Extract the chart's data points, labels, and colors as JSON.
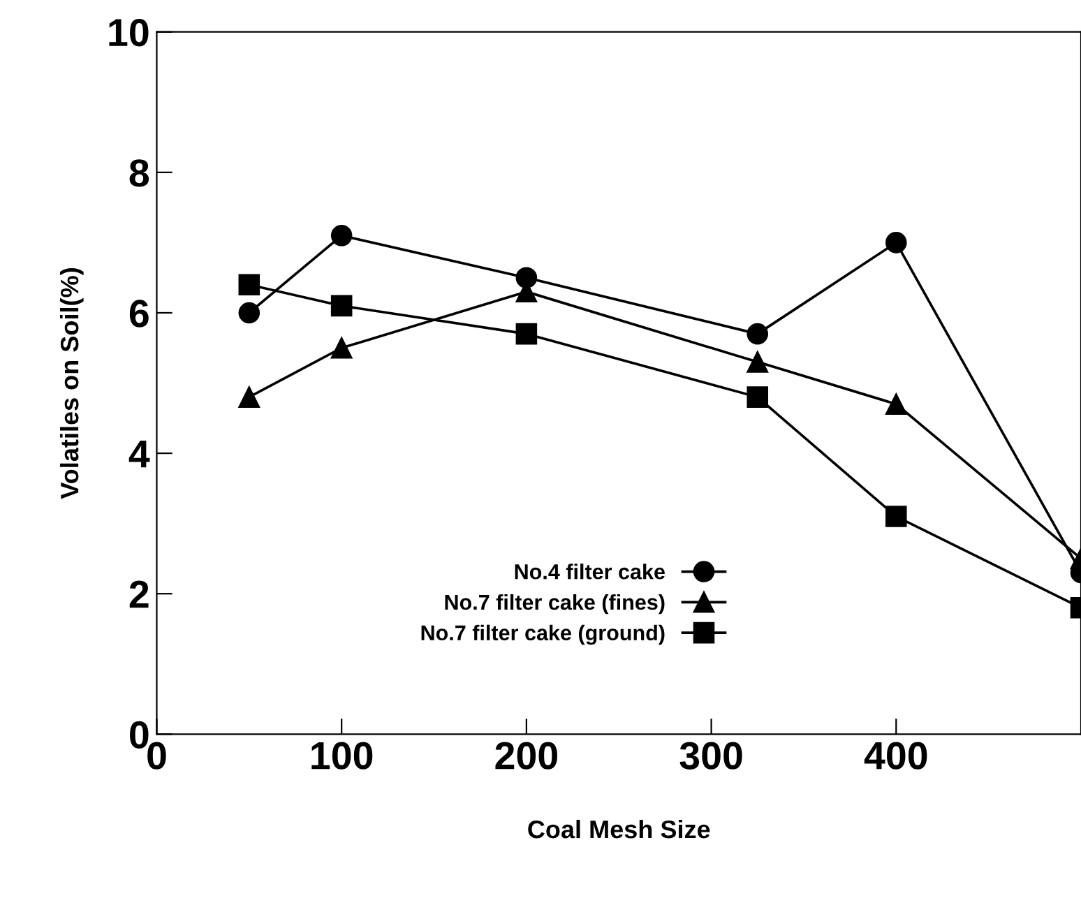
{
  "chart_data": {
    "type": "line",
    "xlabel": "Coal Mesh Size",
    "ylabel": "Volatiles on Soil(%)",
    "x": [
      50,
      100,
      200,
      325,
      400,
      500
    ],
    "series": [
      {
        "name": "No.4 filter cake",
        "color": "#000000",
        "marker": "circle",
        "values": [
          6.0,
          7.1,
          6.5,
          5.7,
          7.0,
          2.3
        ]
      },
      {
        "name": "No.7 filter cake (fines)",
        "color": "#000000",
        "marker": "triangle",
        "values": [
          4.8,
          5.5,
          6.3,
          5.3,
          4.7,
          2.5
        ]
      },
      {
        "name": "No.7 filter cake (ground)",
        "color": "#000000",
        "marker": "square",
        "values": [
          6.4,
          6.1,
          5.7,
          4.8,
          3.1,
          1.8
        ]
      }
    ],
    "xlim": [
      0,
      500
    ],
    "ylim": [
      0,
      10
    ],
    "xticks": [
      0,
      100,
      200,
      300,
      400
    ],
    "yticks": [
      0,
      2,
      4,
      6,
      8,
      10
    ],
    "grid": false,
    "legend": "lower center",
    "line_style": "solid"
  }
}
